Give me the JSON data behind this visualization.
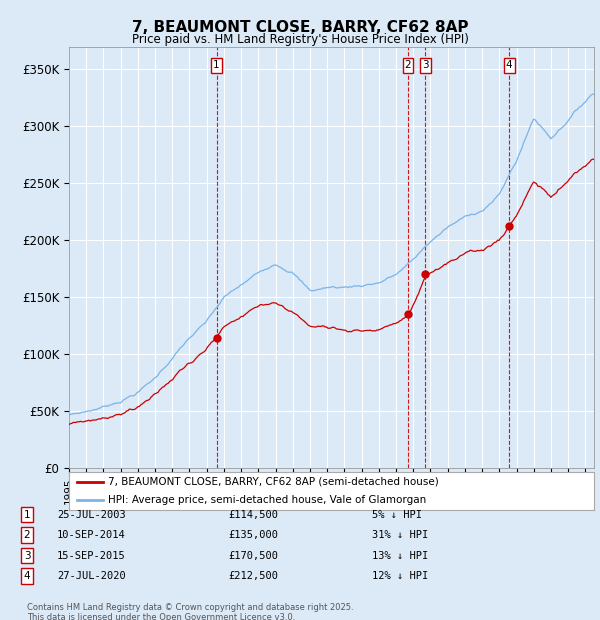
{
  "title": "7, BEAUMONT CLOSE, BARRY, CF62 8AP",
  "subtitle": "Price paid vs. HM Land Registry's House Price Index (HPI)",
  "ylim": [
    0,
    370000
  ],
  "yticks": [
    0,
    50000,
    100000,
    150000,
    200000,
    250000,
    300000,
    350000
  ],
  "ytick_labels": [
    "£0",
    "£50K",
    "£100K",
    "£150K",
    "£200K",
    "£250K",
    "£300K",
    "£350K"
  ],
  "xlim_start": 1995.0,
  "xlim_end": 2025.5,
  "purchases": [
    {
      "label": "1",
      "year": 2003.57,
      "price": 114500,
      "date": "25-JUL-2003",
      "pct": "5%",
      "dir": "↓"
    },
    {
      "label": "2",
      "year": 2014.69,
      "price": 135000,
      "date": "10-SEP-2014",
      "pct": "31%",
      "dir": "↓"
    },
    {
      "label": "3",
      "year": 2015.71,
      "price": 170500,
      "date": "15-SEP-2015",
      "pct": "13%",
      "dir": "↓"
    },
    {
      "label": "4",
      "year": 2020.57,
      "price": 212500,
      "date": "27-JUL-2020",
      "pct": "12%",
      "dir": "↓"
    }
  ],
  "hpi_color": "#7ab4e8",
  "price_color": "#cc0000",
  "vline_color": "#cc0000",
  "background_color": "#dce9f7",
  "grid_color": "#ffffff",
  "footer_text": "Contains HM Land Registry data © Crown copyright and database right 2025.\nThis data is licensed under the Open Government Licence v3.0.",
  "legend1": "7, BEAUMONT CLOSE, BARRY, CF62 8AP (semi-detached house)",
  "legend2": "HPI: Average price, semi-detached house, Vale of Glamorgan",
  "hpi_key_years": [
    1995,
    1996,
    1997,
    1998,
    1999,
    2000,
    2001,
    2002,
    2003,
    2004,
    2005,
    2006,
    2007,
    2008,
    2009,
    2010,
    2011,
    2012,
    2013,
    2014,
    2015,
    2016,
    2017,
    2018,
    2019,
    2020,
    2021,
    2022,
    2023,
    2024,
    2025.4
  ],
  "hpi_key_vals": [
    47000,
    50000,
    54000,
    60000,
    68000,
    80000,
    98000,
    115000,
    128000,
    148000,
    158000,
    168000,
    178000,
    172000,
    155000,
    158000,
    158000,
    160000,
    163000,
    170000,
    182000,
    198000,
    210000,
    218000,
    225000,
    238000,
    268000,
    305000,
    288000,
    305000,
    328000
  ]
}
